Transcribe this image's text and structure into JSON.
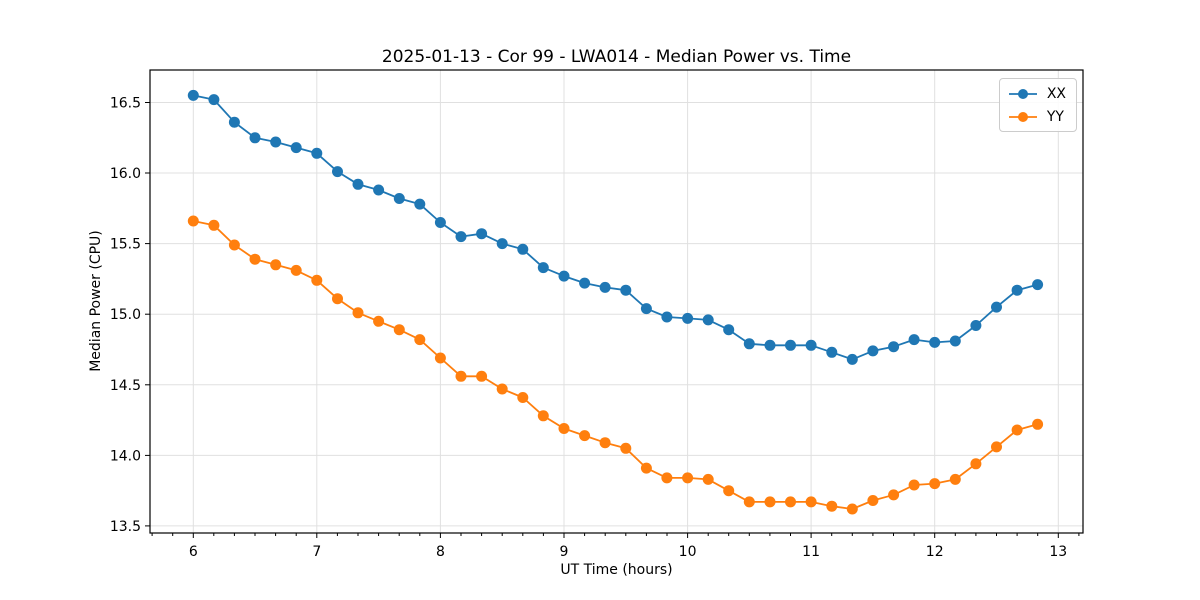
{
  "figure": {
    "background": "#ffffff",
    "plot_border_color": "#000000",
    "grid_color": "#e0e0e0"
  },
  "chart_data": {
    "type": "line",
    "title": "2025-01-13 - Cor 99 - LWA014 - Median Power vs. Time",
    "xlabel": "UT Time (hours)",
    "ylabel": "Median Power (CPU)",
    "grid": true,
    "legend_position": "upper right",
    "xlim": [
      5.65,
      13.2
    ],
    "ylim": [
      13.45,
      16.73
    ],
    "x_major_ticks": [
      6,
      7,
      8,
      9,
      10,
      11,
      12,
      13
    ],
    "x_tick_labels": [
      "6",
      "7",
      "8",
      "9",
      "10",
      "11",
      "12",
      "13"
    ],
    "x_minor_tick_step_hours": 0.1667,
    "y_ticks": [
      13.5,
      14.0,
      14.5,
      15.0,
      15.5,
      16.0,
      16.5
    ],
    "y_tick_labels": [
      "13.5",
      "14.0",
      "14.5",
      "15.0",
      "15.5",
      "16.0",
      "16.5"
    ],
    "x": [
      6.0,
      6.167,
      6.333,
      6.5,
      6.667,
      6.833,
      7.0,
      7.167,
      7.333,
      7.5,
      7.667,
      7.833,
      8.0,
      8.167,
      8.333,
      8.5,
      8.667,
      8.833,
      9.0,
      9.167,
      9.333,
      9.5,
      9.667,
      9.833,
      10.0,
      10.167,
      10.333,
      10.5,
      10.667,
      10.833,
      11.0,
      11.167,
      11.333,
      11.5,
      11.667,
      11.833,
      12.0,
      12.167,
      12.333,
      12.5,
      12.667,
      12.833
    ],
    "series": [
      {
        "name": "XX",
        "color": "#1f77b4",
        "marker": "circle",
        "values": [
          16.55,
          16.52,
          16.36,
          16.25,
          16.22,
          16.18,
          16.14,
          16.01,
          15.92,
          15.88,
          15.82,
          15.78,
          15.65,
          15.55,
          15.57,
          15.5,
          15.46,
          15.33,
          15.27,
          15.22,
          15.19,
          15.17,
          15.04,
          14.98,
          14.97,
          14.96,
          14.89,
          14.79,
          14.78,
          14.78,
          14.78,
          14.73,
          14.68,
          14.74,
          14.77,
          14.82,
          14.8,
          14.81,
          14.92,
          15.05,
          15.17,
          15.21
        ]
      },
      {
        "name": "YY",
        "color": "#ff7f0e",
        "marker": "circle",
        "values": [
          15.66,
          15.63,
          15.49,
          15.39,
          15.35,
          15.31,
          15.24,
          15.11,
          15.01,
          14.95,
          14.89,
          14.82,
          14.69,
          14.56,
          14.56,
          14.47,
          14.41,
          14.28,
          14.19,
          14.14,
          14.09,
          14.05,
          13.91,
          13.84,
          13.84,
          13.83,
          13.75,
          13.67,
          13.67,
          13.67,
          13.67,
          13.64,
          13.62,
          13.68,
          13.72,
          13.79,
          13.8,
          13.83,
          13.94,
          14.06,
          14.18,
          14.22
        ]
      }
    ]
  }
}
